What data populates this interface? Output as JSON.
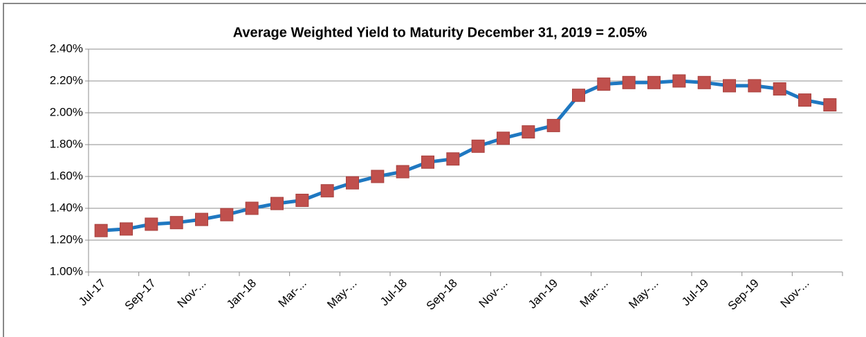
{
  "chart_data": {
    "type": "line",
    "title": "Average Weighted Yield to Maturity December 31, 2019 = 2.05%",
    "categories": [
      "Jul-17",
      null,
      "Sep-17",
      null,
      "Nov-...",
      null,
      "Jan-18",
      null,
      "Mar-...",
      null,
      "May-...",
      null,
      "Jul-18",
      null,
      "Sep-18",
      null,
      "Nov-...",
      null,
      "Jan-19",
      null,
      "Mar-...",
      null,
      "May-...",
      null,
      "Jul-19",
      null,
      "Sep-19",
      null,
      "Nov-...",
      null
    ],
    "series": [
      {
        "name": "Average Weighted Yield to Maturity",
        "color": "#1f78c1",
        "marker_color": "#c0504d",
        "values": [
          1.26,
          1.27,
          1.3,
          1.31,
          1.33,
          1.36,
          1.4,
          1.43,
          1.45,
          1.51,
          1.56,
          1.6,
          1.63,
          1.69,
          1.71,
          1.79,
          1.84,
          1.88,
          1.92,
          2.11,
          2.18,
          2.19,
          2.19,
          2.2,
          2.19,
          2.17,
          2.17,
          2.15,
          2.08,
          2.05
        ]
      }
    ],
    "ylim": [
      1.0,
      2.4
    ],
    "yticks": [
      {
        "value": 1.0,
        "label": "1.00%"
      },
      {
        "value": 1.2,
        "label": "1.20%"
      },
      {
        "value": 1.4,
        "label": "1.40%"
      },
      {
        "value": 1.6,
        "label": "1.60%"
      },
      {
        "value": 1.8,
        "label": "1.80%"
      },
      {
        "value": 2.0,
        "label": "2.00%"
      },
      {
        "value": 2.2,
        "label": "2.20%"
      },
      {
        "value": 2.4,
        "label": "2.40%"
      }
    ],
    "grid": true
  }
}
